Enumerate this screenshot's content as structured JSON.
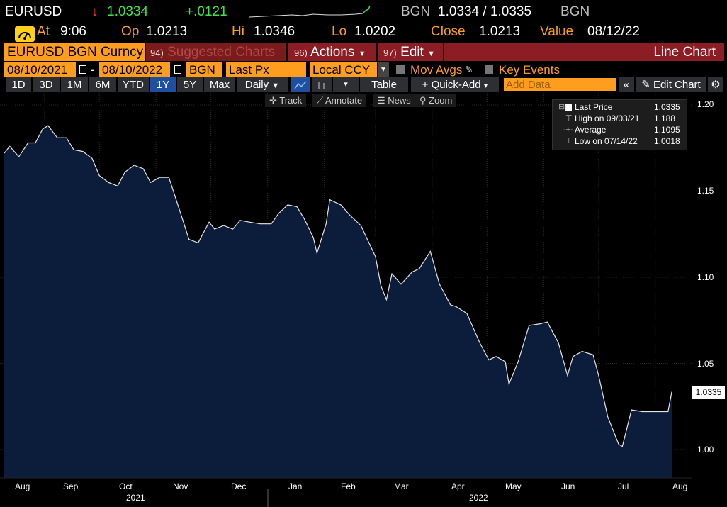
{
  "header": {
    "ticker": "EURUSD",
    "arrow": "↓",
    "last": "1.0334",
    "change": "+.0121",
    "bid_source": "BGN",
    "bid_ask": "1.0334 / 1.0335",
    "ask_source": "BGN"
  },
  "quote": {
    "at_label": "At",
    "at_value": "9:06",
    "open_label": "Op",
    "open_value": "1.0213",
    "high_label": "Hi",
    "high_value": "1.0346",
    "low_label": "Lo",
    "low_value": "1.0202",
    "close_label": "Close",
    "close_value": "1.0213",
    "value_label": "Value",
    "value_value": "08/12/22"
  },
  "menu": {
    "security": "EURUSD BGN Curncy",
    "suggested_num": "94)",
    "suggested": "Suggested Charts",
    "actions_num": "96)",
    "actions": "Actions",
    "edit_num": "97)",
    "edit": "Edit",
    "title": "Line Chart"
  },
  "settings": {
    "start_date": "08/10/2021",
    "dash": "-",
    "end_date": "08/10/2022",
    "source": "BGN",
    "field": "Last Px",
    "currency": "Local CCY",
    "mov_avgs": "Mov Avgs",
    "key_events": "Key Events"
  },
  "toolbar": {
    "periods": [
      "1D",
      "3D",
      "1M",
      "6M",
      "YTD",
      "1Y",
      "5Y",
      "Max"
    ],
    "selected_period": "1Y",
    "frequency": "Daily",
    "table": "Table",
    "quick_add": "Quick-Add",
    "add_data_placeholder": "Add Data",
    "edit_chart": "Edit Chart"
  },
  "chart_tools": {
    "track": "Track",
    "annotate": "Annotate",
    "news": "News",
    "zoom": "Zoom"
  },
  "legend": {
    "last_label": "Last Price",
    "last_value": "1.0335",
    "high_label": "High on 09/03/21",
    "high_value": "1.188",
    "avg_label": "Average",
    "avg_value": "1.1095",
    "low_label": "Low on 07/14/22",
    "low_value": "1.0018"
  },
  "last_price_tag": "1.0335",
  "colors": {
    "accent": "#ff9d1f",
    "menu_red": "#8c1d25",
    "positive": "#3ee34a",
    "negative": "#ff3b30",
    "area_fill": "#0b1d3a"
  },
  "chart_data": {
    "type": "area",
    "y_ticks": [
      "1.20",
      "1.15",
      "1.10",
      "1.05",
      "1.00"
    ],
    "ylim": [
      0.975,
      1.205
    ],
    "x_ticks": [
      "Aug",
      "Sep",
      "Oct",
      "Nov",
      "Dec",
      "Jan",
      "Feb",
      "Mar",
      "Apr",
      "May",
      "Jun",
      "Jul",
      "Aug"
    ],
    "years": [
      "2021",
      "2022"
    ],
    "x": [
      "2021-08-10",
      "2021-08-13",
      "2021-08-18",
      "2021-08-23",
      "2021-08-27",
      "2021-08-31",
      "2021-09-03",
      "2021-09-08",
      "2021-09-13",
      "2021-09-17",
      "2021-09-22",
      "2021-09-27",
      "2021-10-01",
      "2021-10-06",
      "2021-10-11",
      "2021-10-15",
      "2021-10-20",
      "2021-10-25",
      "2021-10-29",
      "2021-11-03",
      "2021-11-08",
      "2021-11-12",
      "2021-11-16",
      "2021-11-19",
      "2021-11-24",
      "2021-11-30",
      "2021-12-03",
      "2021-12-08",
      "2021-12-13",
      "2021-12-17",
      "2021-12-22",
      "2021-12-28",
      "2022-01-03",
      "2022-01-07",
      "2022-01-12",
      "2022-01-17",
      "2022-01-21",
      "2022-01-26",
      "2022-01-28",
      "2022-02-02",
      "2022-02-04",
      "2022-02-10",
      "2022-02-15",
      "2022-02-21",
      "2022-02-25",
      "2022-03-01",
      "2022-03-04",
      "2022-03-07",
      "2022-03-10",
      "2022-03-15",
      "2022-03-21",
      "2022-03-25",
      "2022-03-31",
      "2022-04-05",
      "2022-04-11",
      "2022-04-14",
      "2022-04-20",
      "2022-04-27",
      "2022-05-02",
      "2022-05-06",
      "2022-05-11",
      "2022-05-13",
      "2022-05-18",
      "2022-05-24",
      "2022-05-30",
      "2022-06-03",
      "2022-06-09",
      "2022-06-14",
      "2022-06-17",
      "2022-06-22",
      "2022-06-28",
      "2022-07-01",
      "2022-07-06",
      "2022-07-12",
      "2022-07-14",
      "2022-07-19",
      "2022-07-25",
      "2022-07-29",
      "2022-08-03",
      "2022-08-08",
      "2022-08-10"
    ],
    "values": [
      1.172,
      1.176,
      1.17,
      1.178,
      1.178,
      1.186,
      1.188,
      1.181,
      1.181,
      1.174,
      1.173,
      1.169,
      1.159,
      1.155,
      1.153,
      1.161,
      1.165,
      1.163,
      1.155,
      1.158,
      1.158,
      1.145,
      1.132,
      1.122,
      1.12,
      1.132,
      1.128,
      1.13,
      1.128,
      1.133,
      1.132,
      1.131,
      1.131,
      1.137,
      1.142,
      1.141,
      1.134,
      1.123,
      1.114,
      1.131,
      1.145,
      1.142,
      1.136,
      1.13,
      1.121,
      1.112,
      1.095,
      1.087,
      1.102,
      1.096,
      1.103,
      1.105,
      1.115,
      1.096,
      1.084,
      1.083,
      1.079,
      1.062,
      1.052,
      1.054,
      1.051,
      1.038,
      1.051,
      1.072,
      1.073,
      1.074,
      1.062,
      1.043,
      1.054,
      1.057,
      1.055,
      1.043,
      1.019,
      1.003,
      1.0018,
      1.023,
      1.022,
      1.022,
      1.022,
      1.022,
      1.0335
    ]
  }
}
